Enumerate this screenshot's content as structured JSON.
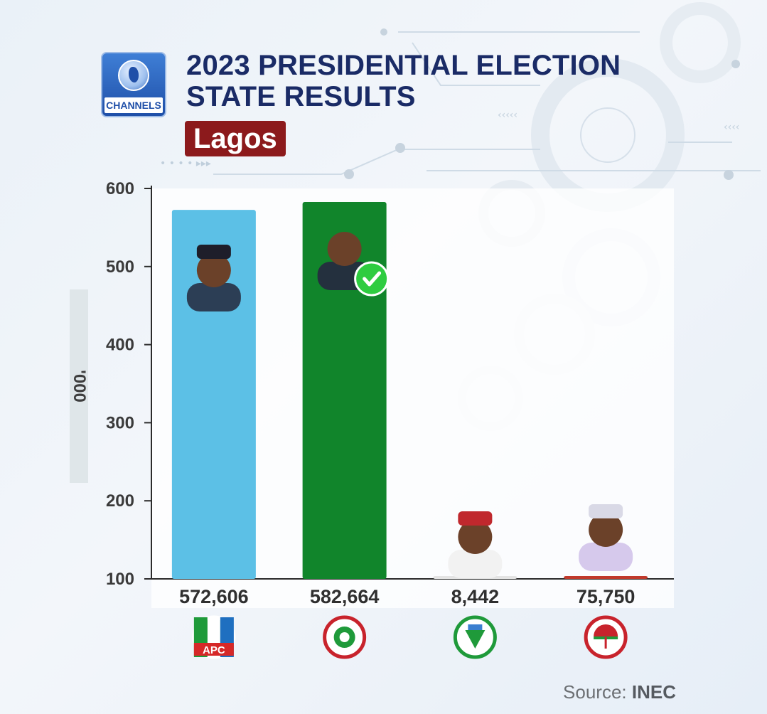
{
  "header": {
    "logo_text": "CHANNELS",
    "title_line1": "2023 PRESIDENTIAL ELECTION",
    "title_line2": "STATE RESULTS",
    "state": "Lagos"
  },
  "axis_unit": "'000",
  "source": {
    "prefix": "Source:",
    "name": "INEC"
  },
  "colors": {
    "title": "#1a2b66",
    "state_badge": "#8c1a1c",
    "apc_bar": "#5cc0e6",
    "lp_bar": "#11852b",
    "nnpp_bar": "#e4e4e4",
    "pdp_bar": "#c0392b",
    "winner_check": "#2ecc40"
  },
  "chart_data": {
    "type": "bar",
    "title": "2023 PRESIDENTIAL ELECTION STATE RESULTS",
    "subtitle": "Lagos",
    "categories": [
      "APC",
      "LP",
      "NNPP",
      "PDP"
    ],
    "values": [
      572606,
      582664,
      8442,
      75750
    ],
    "value_labels": [
      "572,606",
      "582,664",
      "8,442",
      "75,750"
    ],
    "ylabel": "'000",
    "ylim": [
      100,
      600
    ],
    "yticks": [
      100,
      200,
      300,
      400,
      500,
      600
    ],
    "ytick_unit_divisor": 1000,
    "winner": "LP",
    "bar_colors": [
      "#5cc0e6",
      "#11852b",
      "#e4e4e4",
      "#c0392b"
    ],
    "party_logos": [
      "APC",
      "LP",
      "NNPP",
      "PDP"
    ],
    "grid": false
  }
}
